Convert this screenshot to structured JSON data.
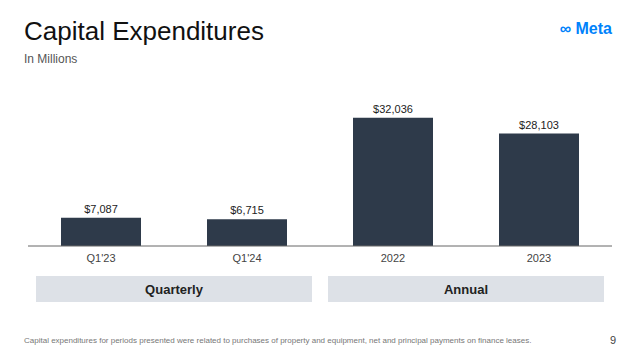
{
  "chart_data": {
    "type": "bar",
    "title": "Capital Expenditures",
    "subtitle": "In Millions",
    "categories": [
      "Q1'23",
      "Q1'24",
      "2022",
      "2023"
    ],
    "values": [
      7087,
      6715,
      32036,
      28103
    ],
    "value_labels": [
      "$7,087",
      "$6,715",
      "$32,036",
      "$28,103"
    ],
    "color": "#2e3a4a",
    "ylim": [
      0,
      38000
    ],
    "data_labels": true,
    "tick_labels": "x",
    "grid": false,
    "groups": [
      {
        "label": "Quarterly",
        "categories": [
          "Q1'23",
          "Q1'24"
        ]
      },
      {
        "label": "Annual",
        "categories": [
          "2022",
          "2023"
        ]
      }
    ],
    "annotations": [
      {
        "text": "∞ Meta",
        "color": "#0082FB"
      },
      {
        "text": "9"
      }
    ],
    "footnote": "Capital expenditures for periods presented were related to purchases of property and equipment, net and principal payments on finance leases."
  }
}
